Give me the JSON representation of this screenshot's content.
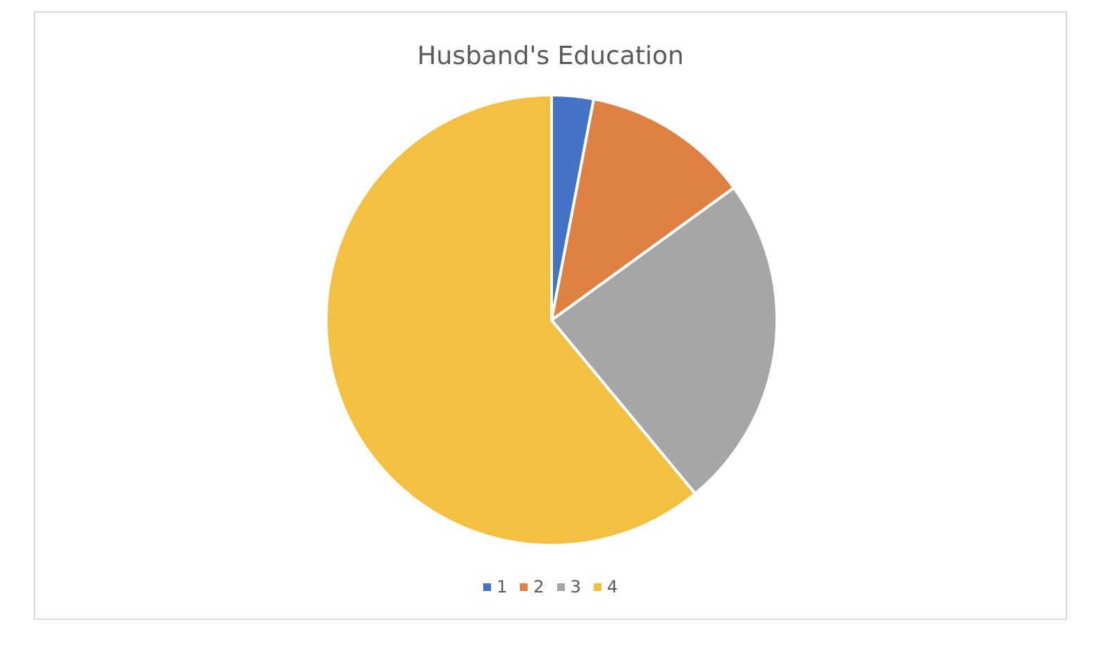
{
  "chart_data": {
    "type": "pie",
    "title": "Husband's Education",
    "categories": [
      "1",
      "2",
      "3",
      "4"
    ],
    "values": [
      3.0,
      12.0,
      24.0,
      61.0
    ],
    "colors": [
      "#4472C4",
      "#ED7D31",
      "#A5A5A5",
      "#FFC000"
    ],
    "slice_colors_rendered": [
      "#4472C4",
      "#E08144",
      "#A6A6A6",
      "#F4C042"
    ],
    "legend_position": "bottom",
    "start_angle": "12 o'clock, clockwise"
  }
}
